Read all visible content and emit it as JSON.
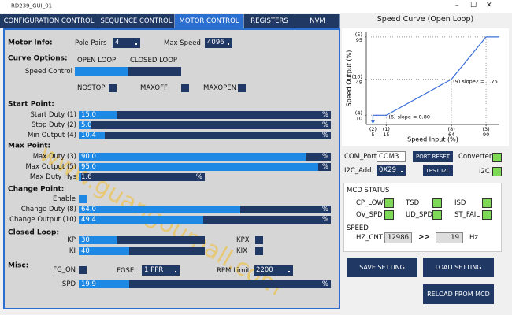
{
  "window": {
    "title": "RD239_GUI_01"
  },
  "tabs": [
    "CONFIGURATION CONTROL",
    "SEQUENCE CONTROL",
    "MOTOR CONTROL",
    "REGISTERS",
    "NVM"
  ],
  "active_tab": 2,
  "watermark": "www.guangoumall.com",
  "motor_info": {
    "heading": "Motor Info:",
    "pole_pairs_label": "Pole Pairs",
    "pole_pairs": "4",
    "max_speed_label": "Max Speed",
    "max_speed": "4096"
  },
  "curve_options": {
    "heading": "Curve Options:",
    "open_loop": "OPEN LOOP",
    "closed_loop": "CLOSED LOOP",
    "speed_control_label": "Speed Control",
    "speed_control_selected": 0,
    "checkboxes": [
      {
        "label": "NOSTOP"
      },
      {
        "label": "MAXOFF"
      },
      {
        "label": "MAXOPEN"
      }
    ]
  },
  "start_point": {
    "heading": "Start Point:",
    "sliders": [
      {
        "label": "Start Duty (1)",
        "value": "15.0",
        "unit": "%"
      },
      {
        "label": "Stop Duty (2)",
        "value": "5.0",
        "unit": "%"
      },
      {
        "label": "Min Output (4)",
        "value": "10.4",
        "unit": "%"
      }
    ]
  },
  "max_point": {
    "heading": "Max Point:",
    "sliders": [
      {
        "label": "Max Duty (3)",
        "value": "90.0",
        "unit": "%"
      },
      {
        "label": "Max Output (5)",
        "value": "95.0",
        "unit": "%"
      },
      {
        "label": "Max Duty Hys",
        "value": "1.6",
        "unit": "%"
      }
    ]
  },
  "change_point": {
    "heading": "Change Point:",
    "enable_label": "Enable",
    "enable": true,
    "sliders": [
      {
        "label": "Change Duty (8)",
        "value": "64.0",
        "unit": "%"
      },
      {
        "label": "Change Output (10)",
        "value": "49.4",
        "unit": "%"
      }
    ]
  },
  "closed_loop": {
    "heading": "Closed Loop:",
    "sliders": [
      {
        "label": "KP",
        "value": "30"
      },
      {
        "label": "KI",
        "value": "40"
      }
    ],
    "checkboxes": [
      {
        "label": "KPX"
      },
      {
        "label": "KIX"
      }
    ]
  },
  "misc": {
    "heading": "Misc:",
    "fg_on_label": "FG_ON",
    "fgsel_label": "FGSEL",
    "fgsel": "1 PPR",
    "rpm_limit_label": "RPM Limit",
    "rpm_limit": "2200",
    "spd": {
      "label": "SPD",
      "value": "19.9",
      "unit": "%"
    }
  },
  "speed_curve": {
    "type": "line",
    "title": "Speed Curve (Open Loop)",
    "x_label": "Speed Input (%)",
    "y_label": "Speed Output (%)",
    "x": [
      5,
      15,
      64,
      90,
      100
    ],
    "values": [
      10,
      10,
      49,
      95,
      95
    ],
    "color": "#3a6fd8",
    "xlim": [
      0,
      100
    ],
    "ylim": [
      0,
      100
    ],
    "xticks": [
      {
        "value": 5,
        "label": "5",
        "index": "(2)"
      },
      {
        "value": 15,
        "label": "15",
        "index": "(1)"
      },
      {
        "value": 64,
        "label": "64",
        "index": "(8)"
      },
      {
        "value": 90,
        "label": "90",
        "index": "(3)"
      }
    ],
    "yticks": [
      {
        "value": 10,
        "label": "10",
        "index": "(4)"
      },
      {
        "value": 49,
        "label": "49",
        "index": "(10)"
      },
      {
        "value": 95,
        "label": "95",
        "index": "(5)"
      }
    ],
    "annotations": [
      "(6) slope = 0.80",
      "(9) slope2 = 1.75"
    ]
  },
  "connection": {
    "com_port_label": "COM_Port",
    "com_port": "COM3",
    "port_reset": "PORT RESET",
    "converter_label": "Converter",
    "converter_ok": true,
    "i2c_add_label": "I2C_Add.",
    "i2c_add": "0X29",
    "test_i2c": "TEST I2C",
    "i2c_label": "I2C",
    "i2c_ok": true
  },
  "mcd_status": {
    "heading": "MCD STATUS",
    "flags": [
      {
        "label": "CP_LOW",
        "on": true
      },
      {
        "label": "TSD",
        "on": true
      },
      {
        "label": "ISD",
        "on": true
      },
      {
        "label": "OV_SPD",
        "on": true
      },
      {
        "label": "UD_SPD",
        "on": true
      },
      {
        "label": "ST_FAIL",
        "on": true
      }
    ],
    "speed_heading": "SPEED",
    "hz_cnt_label": "HZ_CNT",
    "hz_cnt": "12986",
    "arrow": ">>",
    "hz": "19",
    "hz_unit": "Hz"
  },
  "buttons": [
    "SAVE SETTING",
    "LOAD SETTING",
    "RELOAD FROM MCD"
  ]
}
